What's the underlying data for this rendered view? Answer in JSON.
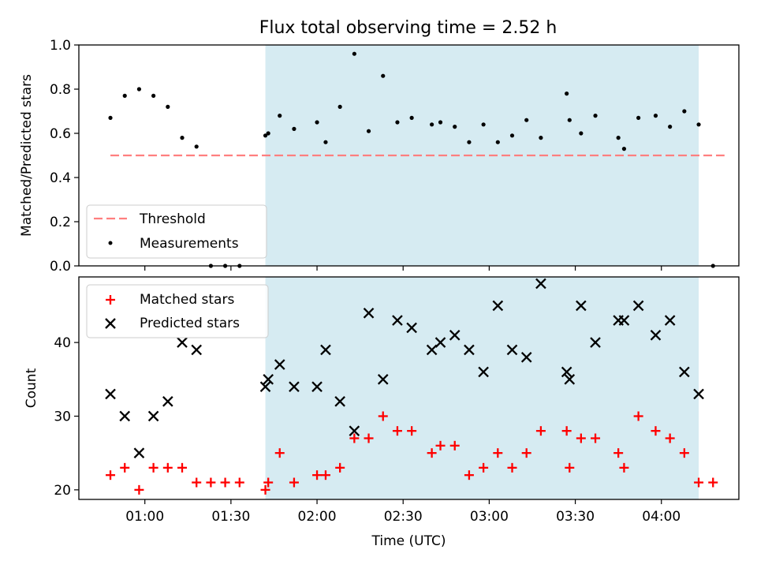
{
  "chart_data": [
    {
      "type": "scatter",
      "title": "Flux total observing time = 2.52 h",
      "xlabel": "",
      "ylabel": "Matched/Predicted stars",
      "x_unit": "time (UTC)",
      "xlim": [
        "00:37",
        "04:27"
      ],
      "ylim": [
        0,
        1.0
      ],
      "yticks": [
        0.0,
        0.2,
        0.4,
        0.6,
        0.8,
        1.0
      ],
      "ytick_labels": [
        "0.0",
        "0.2",
        "0.4",
        "0.6",
        "0.8",
        "1.0"
      ],
      "xticks": [
        "01:00",
        "01:30",
        "02:00",
        "02:30",
        "03:00",
        "03:30",
        "04:00"
      ],
      "xtick_labels_visible": false,
      "highlight_span": {
        "from": "01:42",
        "to": "04:13",
        "color": "#add8e6"
      },
      "legend": {
        "position": "lower left",
        "entries": [
          "Threshold",
          "Measurements"
        ]
      },
      "threshold": {
        "name": "Threshold",
        "y": 0.5,
        "from": "00:48",
        "to": "04:22",
        "color": "#ff7f7f",
        "style": "dashed"
      },
      "series": [
        {
          "name": "Measurements",
          "color": "#000000",
          "marker": "dot",
          "x": [
            "00:48",
            "00:53",
            "00:58",
            "01:03",
            "01:08",
            "01:13",
            "01:18",
            "01:23",
            "01:28",
            "01:33",
            "01:42",
            "01:43",
            "01:47",
            "01:52",
            "02:00",
            "02:03",
            "02:08",
            "02:13",
            "02:18",
            "02:23",
            "02:28",
            "02:33",
            "02:40",
            "02:43",
            "02:48",
            "02:53",
            "02:58",
            "03:03",
            "03:08",
            "03:13",
            "03:18",
            "03:27",
            "03:28",
            "03:32",
            "03:37",
            "03:45",
            "03:47",
            "03:52",
            "03:58",
            "04:03",
            "04:08",
            "04:13",
            "04:18"
          ],
          "y": [
            0.67,
            0.77,
            0.8,
            0.77,
            0.72,
            0.58,
            0.54,
            0.0,
            0.0,
            0.0,
            0.59,
            0.6,
            0.68,
            0.62,
            0.65,
            0.56,
            0.72,
            0.96,
            0.61,
            0.86,
            0.65,
            0.67,
            0.64,
            0.65,
            0.63,
            0.56,
            0.64,
            0.56,
            0.59,
            0.66,
            0.58,
            0.78,
            0.66,
            0.6,
            0.68,
            0.58,
            0.53,
            0.67,
            0.68,
            0.63,
            0.7,
            0.64,
            0.0
          ]
        }
      ]
    },
    {
      "type": "scatter",
      "title": "",
      "xlabel": "Time (UTC)",
      "ylabel": "Count",
      "xlim": [
        "00:37",
        "04:27"
      ],
      "ylim": [
        18.7,
        48.9
      ],
      "yticks": [
        20,
        30,
        40
      ],
      "ytick_labels": [
        "20",
        "30",
        "40"
      ],
      "xticks": [
        "01:00",
        "01:30",
        "02:00",
        "02:30",
        "03:00",
        "03:30",
        "04:00"
      ],
      "xtick_labels": [
        "01:00",
        "01:30",
        "02:00",
        "02:30",
        "03:00",
        "03:30",
        "04:00"
      ],
      "highlight_span": {
        "from": "01:42",
        "to": "04:13",
        "color": "#add8e6"
      },
      "legend": {
        "position": "upper left",
        "entries": [
          "Matched stars",
          "Predicted stars"
        ]
      },
      "series": [
        {
          "name": "Matched stars",
          "color": "#ff0000",
          "marker": "plus",
          "x": [
            "00:48",
            "00:53",
            "00:58",
            "01:03",
            "01:08",
            "01:13",
            "01:18",
            "01:23",
            "01:28",
            "01:33",
            "01:42",
            "01:43",
            "01:47",
            "01:52",
            "02:00",
            "02:03",
            "02:08",
            "02:13",
            "02:18",
            "02:23",
            "02:28",
            "02:33",
            "02:40",
            "02:43",
            "02:48",
            "02:53",
            "02:58",
            "03:03",
            "03:08",
            "03:13",
            "03:18",
            "03:27",
            "03:28",
            "03:32",
            "03:37",
            "03:45",
            "03:47",
            "03:52",
            "03:58",
            "04:03",
            "04:08",
            "04:13",
            "04:18"
          ],
          "y": [
            22,
            23,
            20,
            23,
            23,
            23,
            21,
            21,
            21,
            21,
            20,
            21,
            25,
            21,
            22,
            22,
            23,
            27,
            27,
            30,
            28,
            28,
            25,
            26,
            26,
            22,
            23,
            25,
            23,
            25,
            28,
            28,
            23,
            27,
            27,
            25,
            23,
            30,
            28,
            27,
            25,
            21,
            21
          ]
        },
        {
          "name": "Predicted stars",
          "color": "#000000",
          "marker": "x",
          "x": [
            "00:48",
            "00:53",
            "00:58",
            "01:03",
            "01:08",
            "01:13",
            "01:18",
            "01:42",
            "01:43",
            "01:47",
            "01:52",
            "02:00",
            "02:03",
            "02:08",
            "02:13",
            "02:18",
            "02:23",
            "02:28",
            "02:33",
            "02:40",
            "02:43",
            "02:48",
            "02:53",
            "02:58",
            "03:03",
            "03:08",
            "03:13",
            "03:18",
            "03:27",
            "03:28",
            "03:32",
            "03:37",
            "03:45",
            "03:47",
            "03:52",
            "03:58",
            "04:03",
            "04:08",
            "04:13"
          ],
          "y": [
            33,
            30,
            25,
            30,
            32,
            40,
            39,
            34,
            35,
            37,
            34,
            34,
            39,
            32,
            28,
            44,
            35,
            43,
            42,
            39,
            40,
            41,
            39,
            36,
            45,
            39,
            38,
            48,
            36,
            35,
            45,
            40,
            43,
            43,
            45,
            41,
            43,
            36,
            33
          ]
        }
      ]
    }
  ]
}
